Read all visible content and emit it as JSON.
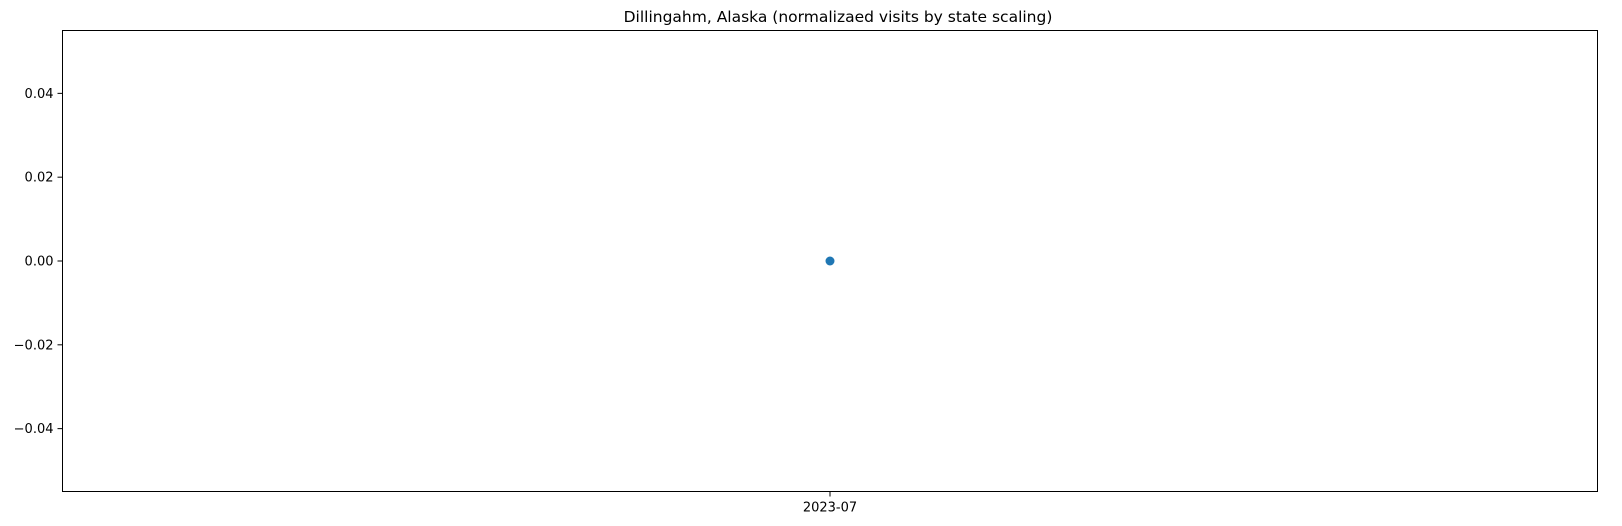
{
  "chart_data": {
    "type": "scatter",
    "title": "Dillingahm, Alaska (normalizaed visits by state scaling)",
    "xlabel": "",
    "ylabel": "",
    "x_ticks": [
      "2023-07"
    ],
    "y_ticks": [
      "−0.04",
      "−0.02",
      "0.00",
      "0.02",
      "0.04"
    ],
    "y_tick_values": [
      -0.04,
      -0.02,
      0.0,
      0.02,
      0.04
    ],
    "ylim": [
      -0.055,
      0.055
    ],
    "points": [
      {
        "x": "2023-07",
        "y": 0.0
      }
    ],
    "grid": false,
    "legend": "none",
    "marker_color": "#1f77b4"
  }
}
